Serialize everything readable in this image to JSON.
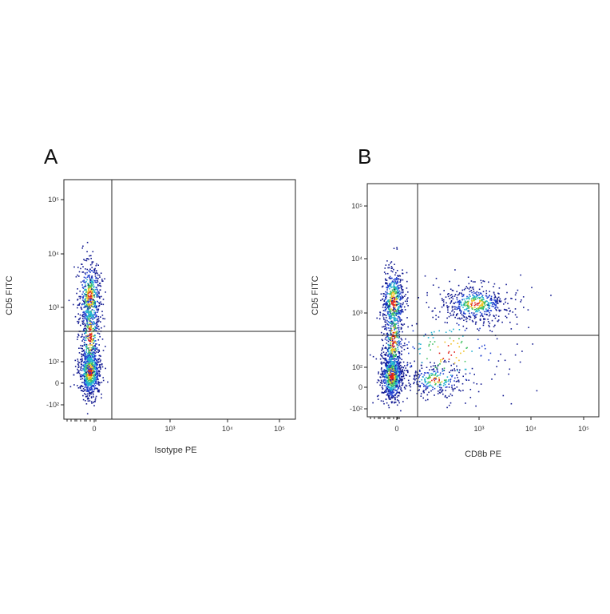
{
  "panels": [
    {
      "label": "A",
      "x_label": "Isotype PE",
      "y_label": "CD5 FITC",
      "y_ticks": [
        "10⁵",
        "10⁴",
        "10³",
        "10²",
        "0",
        "-10²"
      ],
      "x_ticks": [
        "0",
        "10³",
        "10⁴",
        "10⁵"
      ]
    },
    {
      "label": "B",
      "x_label": "CD8b PE",
      "y_label": "CD5 FITC",
      "y_ticks": [
        "10⁵",
        "10⁴",
        "10³",
        "10²",
        "0",
        "-10²"
      ],
      "x_ticks": [
        "0",
        "10³",
        "10⁴",
        "10⁵"
      ]
    }
  ]
}
